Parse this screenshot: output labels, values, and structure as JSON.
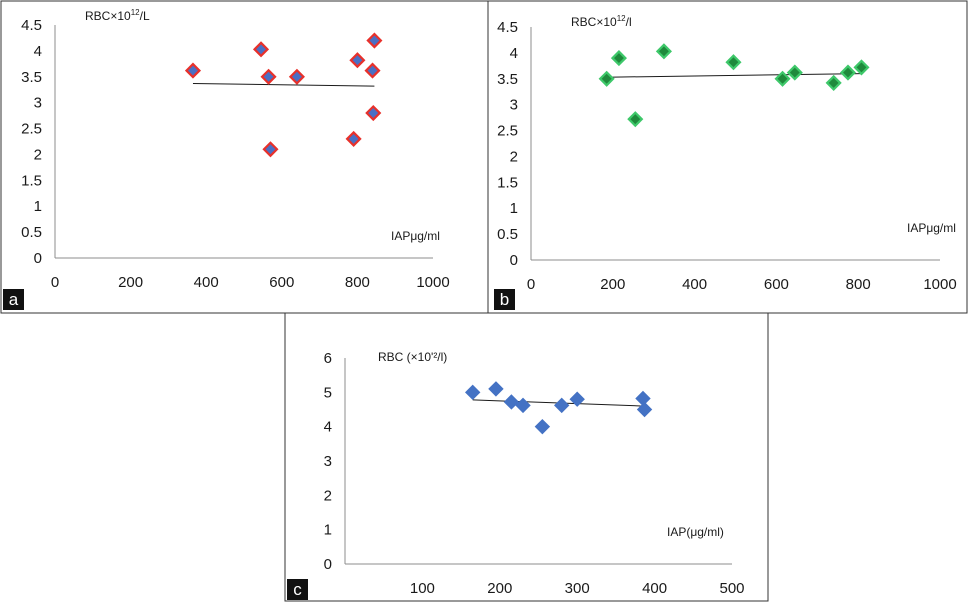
{
  "chart_data": [
    {
      "type": "scatter",
      "panel_label": "a",
      "ylabel_parts": [
        "RBC×10",
        "12",
        "/L"
      ],
      "xlabel": "IAPμg/ml",
      "xlim": [
        0,
        1000
      ],
      "ylim": [
        0,
        4.5
      ],
      "x_ticks": [
        "0",
        "200",
        "400",
        "600",
        "800",
        "1000"
      ],
      "y_ticks": [
        "0",
        "0.5",
        "1",
        "1.5",
        "2",
        "2.5",
        "3",
        "3.5",
        "4",
        "4.5"
      ],
      "marker_fill": "#4a6fc4",
      "marker_edge": "#e8312b",
      "points": [
        {
          "x": 365,
          "y": 3.62
        },
        {
          "x": 545,
          "y": 4.03
        },
        {
          "x": 565,
          "y": 3.5
        },
        {
          "x": 570,
          "y": 2.1
        },
        {
          "x": 640,
          "y": 3.5
        },
        {
          "x": 790,
          "y": 2.3
        },
        {
          "x": 800,
          "y": 3.82
        },
        {
          "x": 840,
          "y": 3.62
        },
        {
          "x": 842,
          "y": 2.8
        },
        {
          "x": 845,
          "y": 4.2
        }
      ],
      "trendline": [
        {
          "x": 365,
          "y": 3.37
        },
        {
          "x": 845,
          "y": 3.32
        }
      ]
    },
    {
      "type": "scatter",
      "panel_label": "b",
      "ylabel_parts": [
        "RBC×10",
        "12",
        "/l"
      ],
      "xlabel": "IAPμg/ml",
      "xlim": [
        0,
        1000
      ],
      "ylim": [
        0,
        4.5
      ],
      "x_ticks": [
        "0",
        "200",
        "400",
        "600",
        "800",
        "1000"
      ],
      "y_ticks": [
        "0",
        "0.5",
        "1",
        "1.5",
        "2",
        "2.5",
        "3",
        "3.5",
        "4",
        "4.5"
      ],
      "marker_fill": "#1f8a3c",
      "marker_edge": "#3ec86a",
      "points": [
        {
          "x": 185,
          "y": 3.5
        },
        {
          "x": 215,
          "y": 3.9
        },
        {
          "x": 255,
          "y": 2.72
        },
        {
          "x": 325,
          "y": 4.03
        },
        {
          "x": 495,
          "y": 3.82
        },
        {
          "x": 615,
          "y": 3.5
        },
        {
          "x": 645,
          "y": 3.62
        },
        {
          "x": 740,
          "y": 3.42
        },
        {
          "x": 775,
          "y": 3.62
        },
        {
          "x": 808,
          "y": 3.72
        }
      ],
      "trendline": [
        {
          "x": 185,
          "y": 3.53
        },
        {
          "x": 808,
          "y": 3.6
        }
      ]
    },
    {
      "type": "scatter",
      "panel_label": "c",
      "ylabel_parts": [
        "RBC (×10'²/l)"
      ],
      "xlabel": "IAP(μg/ml)",
      "xlim": [
        0,
        500
      ],
      "ylim": [
        0,
        6
      ],
      "x_ticks": [
        "",
        "100",
        "200",
        "300",
        "400",
        "500"
      ],
      "y_ticks": [
        "0",
        "1",
        "2",
        "3",
        "4",
        "5",
        "6"
      ],
      "marker_fill": "#4472c4",
      "marker_edge": "#4472c4",
      "points": [
        {
          "x": 165,
          "y": 5.0
        },
        {
          "x": 195,
          "y": 5.1
        },
        {
          "x": 215,
          "y": 4.72
        },
        {
          "x": 230,
          "y": 4.62
        },
        {
          "x": 255,
          "y": 4.0
        },
        {
          "x": 280,
          "y": 4.62
        },
        {
          "x": 300,
          "y": 4.8
        },
        {
          "x": 385,
          "y": 4.82
        },
        {
          "x": 387,
          "y": 4.5
        }
      ],
      "trendline": [
        {
          "x": 165,
          "y": 4.78
        },
        {
          "x": 387,
          "y": 4.6
        }
      ]
    }
  ]
}
